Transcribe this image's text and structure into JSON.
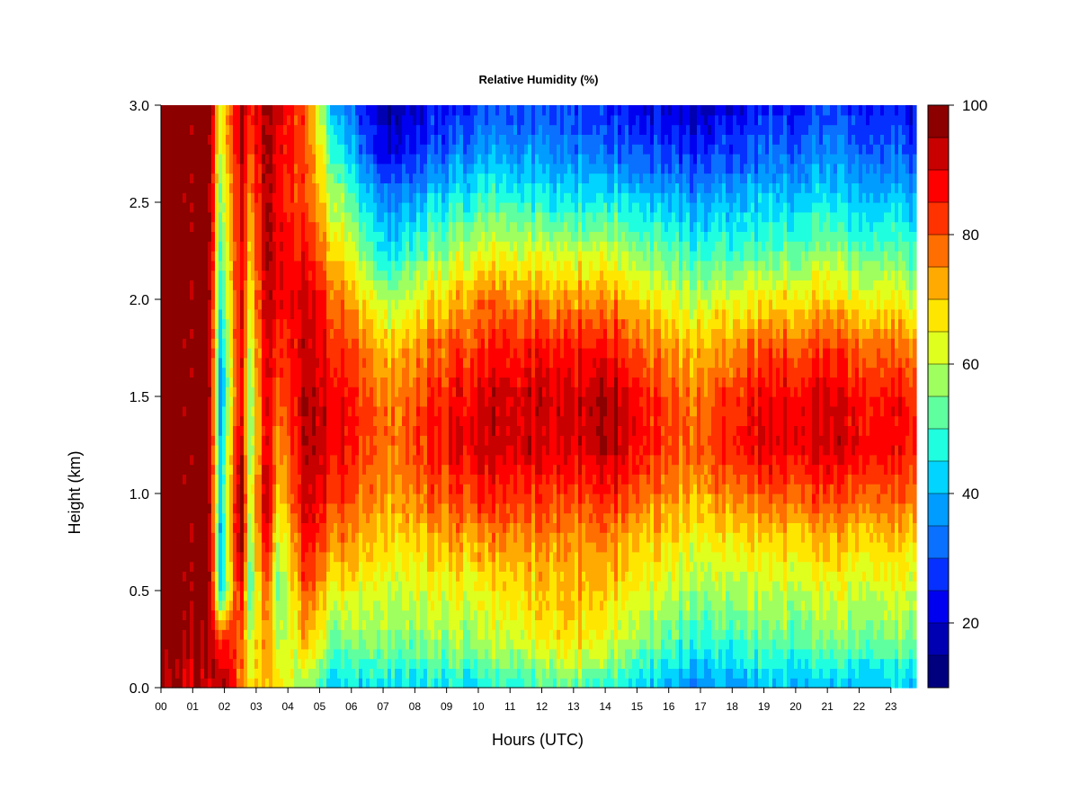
{
  "chart_data": {
    "type": "heatmap",
    "title": "Relative Humidity (%)",
    "xlabel": "Hours (UTC)",
    "ylabel": "Height (km)",
    "x_ticks": [
      "00",
      "01",
      "02",
      "03",
      "04",
      "05",
      "06",
      "07",
      "08",
      "09",
      "10",
      "11",
      "12",
      "13",
      "14",
      "15",
      "16",
      "17",
      "18",
      "19",
      "20",
      "21",
      "22",
      "23"
    ],
    "xlim": [
      0,
      23.8
    ],
    "ylim": [
      0,
      3.0
    ],
    "y_ticks": [
      "0.0",
      "0.5",
      "1.0",
      "1.5",
      "2.0",
      "2.5",
      "3.0"
    ],
    "colorbar": {
      "min": 10,
      "max": 100,
      "step": 5,
      "ticks": [
        "20",
        "40",
        "60",
        "80",
        "100"
      ],
      "colors": [
        "#00007f",
        "#0000b2",
        "#0000f0",
        "#0630ff",
        "#0a70ff",
        "#009cff",
        "#00d4ff",
        "#1fffe0",
        "#5fffa0",
        "#9fff5f",
        "#dfff1f",
        "#ffe600",
        "#ffaa00",
        "#ff6e00",
        "#ff3200",
        "#ff0000",
        "#c80000",
        "#8c0000"
      ]
    },
    "z_profiles": [
      {
        "hour": 0.0,
        "rh": [
          95,
          100,
          100,
          100,
          100,
          100,
          100,
          100,
          100,
          100,
          100,
          100,
          100
        ]
      },
      {
        "hour": 1.5,
        "rh": [
          92,
          95,
          100,
          100,
          100,
          100,
          100,
          100,
          100,
          100,
          100,
          100,
          100
        ]
      },
      {
        "hour": 1.9,
        "rh": [
          98,
          85,
          42,
          40,
          42,
          40,
          35,
          40,
          45,
          50,
          55,
          60,
          65
        ]
      },
      {
        "hour": 2.5,
        "rh": [
          75,
          80,
          90,
          100,
          100,
          95,
          90,
          90,
          90,
          88,
          90,
          92,
          95
        ]
      },
      {
        "hour": 2.8,
        "rh": [
          65,
          60,
          50,
          55,
          60,
          55,
          55,
          60,
          65,
          70,
          75,
          80,
          85
        ]
      },
      {
        "hour": 3.3,
        "rh": [
          70,
          75,
          80,
          90,
          95,
          90,
          90,
          90,
          92,
          95,
          95,
          95,
          95
        ]
      },
      {
        "hour": 3.7,
        "rh": [
          70,
          60,
          55,
          60,
          70,
          75,
          80,
          85,
          90,
          90,
          90,
          90,
          95
        ]
      },
      {
        "hour": 4.5,
        "rh": [
          55,
          70,
          78,
          85,
          90,
          92,
          92,
          90,
          90,
          85,
          80,
          80,
          80
        ]
      },
      {
        "hour": 5.5,
        "rh": [
          42,
          56,
          66,
          76,
          85,
          90,
          90,
          85,
          80,
          70,
          60,
          50,
          40
        ]
      },
      {
        "hour": 7.0,
        "rh": [
          44,
          56,
          62,
          68,
          74,
          78,
          76,
          70,
          58,
          45,
          35,
          22,
          16
        ]
      },
      {
        "hour": 10.0,
        "rh": [
          45,
          58,
          64,
          74,
          84,
          92,
          90,
          84,
          76,
          62,
          50,
          38,
          28
        ]
      },
      {
        "hour": 13.0,
        "rh": [
          52,
          68,
          72,
          74,
          82,
          90,
          92,
          86,
          74,
          60,
          45,
          35,
          28
        ]
      },
      {
        "hour": 14.0,
        "rh": [
          50,
          64,
          70,
          76,
          86,
          96,
          96,
          88,
          76,
          62,
          48,
          34,
          26
        ]
      },
      {
        "hour": 16.5,
        "rh": [
          35,
          48,
          58,
          64,
          72,
          78,
          76,
          70,
          60,
          48,
          38,
          26,
          18
        ]
      },
      {
        "hour": 19.0,
        "rh": [
          40,
          52,
          60,
          68,
          80,
          90,
          88,
          80,
          66,
          52,
          42,
          32,
          24
        ]
      },
      {
        "hour": 21.0,
        "rh": [
          40,
          55,
          62,
          70,
          82,
          92,
          90,
          82,
          68,
          55,
          45,
          35,
          28
        ]
      },
      {
        "hour": 23.8,
        "rh": [
          42,
          54,
          62,
          68,
          78,
          86,
          84,
          76,
          62,
          50,
          40,
          30,
          22
        ]
      }
    ],
    "z_heights": [
      0.0,
      0.25,
      0.5,
      0.75,
      1.0,
      1.25,
      1.5,
      1.75,
      2.0,
      2.25,
      2.5,
      2.75,
      3.0
    ]
  }
}
